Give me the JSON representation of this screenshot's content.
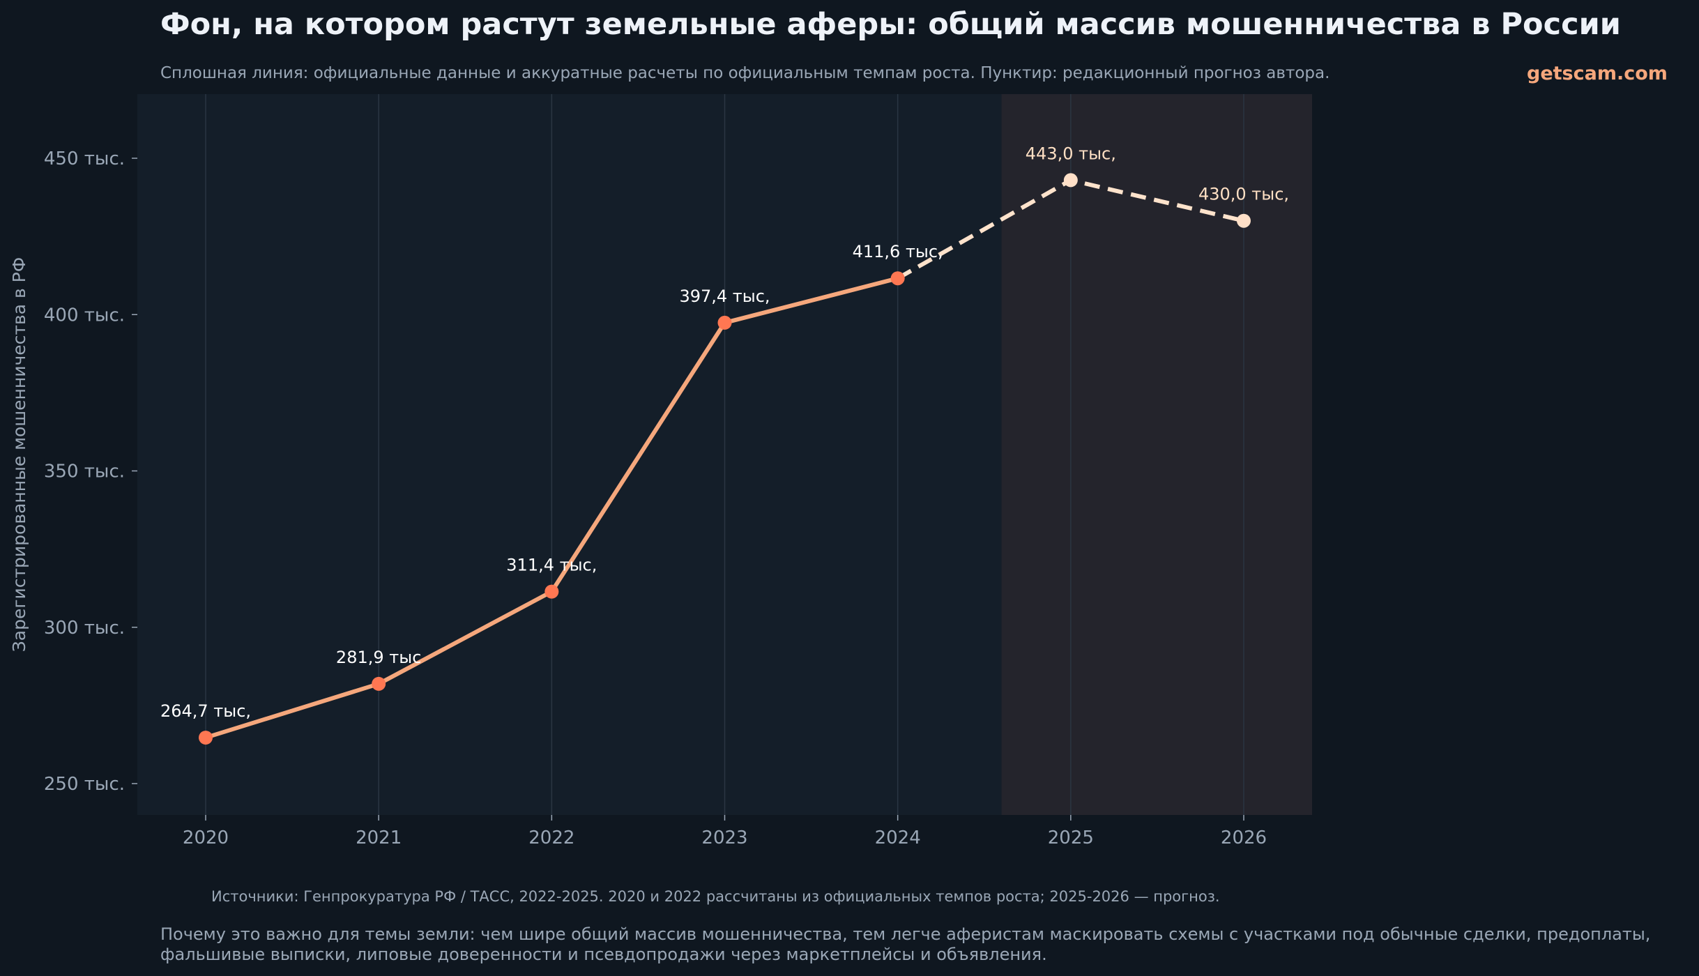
{
  "title": "Фон, на котором растут земельные аферы: общий массив мошенничества в России",
  "watermark": "getscam.com",
  "subtitle": "Сплошная линия: официальные данные и аккуратные расчеты по официальным темпам роста. Пунктир: редакционный прогноз автора.",
  "sources": "Источники: Генпрокуратура РФ / ТАСС, 2022-2025. 2020 и 2022 рассчитаны из официальных темпов роста; 2025-2026 — прогноз.",
  "why": "Почему это важно для темы земли: чем шире общий массив мошенничества, тем легче аферистам маскировать схемы с участками под обычные сделки, предоплаты, фальшивые выписки, липовые доверенности и псевдопродажи через маркетплейсы и объявления.",
  "colors": {
    "bg": "#0f1720",
    "plot": "#141e29",
    "forecast_bg": "#24242c",
    "line": "#f5a77c",
    "marker": "#ff7752",
    "forecast_line": "#ffe3cc",
    "forecast_marker": "#ffe0c8",
    "label": "#ffffff",
    "forecast_label": "#ffe0c4"
  },
  "chart_data": {
    "type": "line",
    "title": "Фон, на котором растут земельные аферы: общий массив мошенничества в России",
    "xlabel": "",
    "ylabel": "Зарегистрированные мошенничества в РФ",
    "x": [
      2020,
      2021,
      2022,
      2023,
      2024,
      2025,
      2026
    ],
    "xticks": [
      "2020",
      "2021",
      "2022",
      "2023",
      "2024",
      "2025",
      "2026"
    ],
    "ylim": [
      240,
      470
    ],
    "yticks": [
      250,
      300,
      350,
      400,
      450
    ],
    "ytick_labels": [
      "250 тыс.",
      "300 тыс.",
      "350 тыс.",
      "400 тыс.",
      "450 тыс."
    ],
    "series": [
      {
        "name": "official",
        "style": "solid",
        "x": [
          2020,
          2021,
          2022,
          2023,
          2024
        ],
        "values": [
          264.7,
          281.9,
          311.4,
          397.4,
          411.6
        ],
        "labels": [
          "264,7 тыс,",
          "281,9 тыс",
          "311,4 тыс,",
          "397,4 тыс,",
          "411,6 тыс,"
        ]
      },
      {
        "name": "forecast",
        "style": "dashed",
        "x": [
          2024,
          2025,
          2026
        ],
        "values": [
          411.6,
          443.0,
          430.0
        ],
        "labels": [
          "",
          "443,0 тыс,",
          "430,0 тыс,"
        ]
      }
    ],
    "forecast_region": [
      2024.6,
      2026.4
    ],
    "grid": "vertical"
  }
}
